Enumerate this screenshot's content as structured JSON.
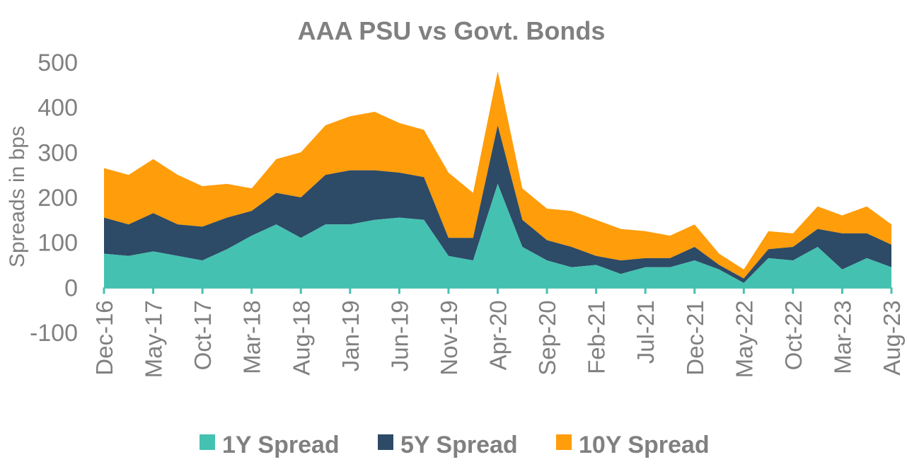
{
  "chart_data": {
    "type": "area",
    "title": "AAA PSU vs Govt. Bonds",
    "xlabel": "",
    "ylabel": "Spreads in bps",
    "ylim": [
      -100,
      500
    ],
    "yticks": [
      "-100",
      "0",
      "100",
      "200",
      "300",
      "400",
      "500"
    ],
    "grid": false,
    "stacked": true,
    "legend_position": "bottom",
    "x": [
      "Dec-16",
      "Mar-17",
      "May-17",
      "Aug-17",
      "Oct-17",
      "Jan-18",
      "Mar-18",
      "Jun-18",
      "Aug-18",
      "Nov-18",
      "Jan-19",
      "Apr-19",
      "Jun-19",
      "Sep-19",
      "Nov-19",
      "Feb-20",
      "Apr-20",
      "Jul-20",
      "Sep-20",
      "Dec-20",
      "Feb-21",
      "May-21",
      "Jul-21",
      "Oct-21",
      "Dec-21",
      "Mar-22",
      "May-22",
      "Aug-22",
      "Oct-22",
      "Jan-23",
      "Mar-23",
      "Jun-23",
      "Aug-23"
    ],
    "xtick_labels": [
      "Dec-16",
      "May-17",
      "Oct-17",
      "Mar-18",
      "Aug-18",
      "Jan-19",
      "Jun-19",
      "Nov-19",
      "Apr-20",
      "Sep-20",
      "Feb-21",
      "Jul-21",
      "Dec-21",
      "May-22",
      "Oct-22",
      "Mar-23",
      "Aug-23"
    ],
    "series": [
      {
        "name": "1Y Spread",
        "color": "#45C1B1",
        "values": [
          75,
          70,
          80,
          70,
          60,
          85,
          115,
          140,
          110,
          140,
          140,
          150,
          155,
          150,
          70,
          60,
          230,
          90,
          60,
          45,
          50,
          30,
          45,
          45,
          60,
          40,
          10,
          65,
          60,
          90,
          40,
          65,
          45
        ]
      },
      {
        "name": "5Y Spread",
        "color": "#2D4A66",
        "values": [
          80,
          70,
          85,
          70,
          75,
          70,
          55,
          70,
          90,
          110,
          120,
          110,
          100,
          95,
          40,
          50,
          130,
          60,
          45,
          45,
          20,
          30,
          20,
          20,
          30,
          10,
          10,
          20,
          30,
          40,
          80,
          55,
          50
        ]
      },
      {
        "name": "10Y Spread",
        "color": "#FF9D0A",
        "values": [
          110,
          110,
          120,
          110,
          90,
          75,
          50,
          75,
          100,
          110,
          120,
          130,
          110,
          105,
          145,
          100,
          120,
          70,
          70,
          80,
          80,
          70,
          60,
          50,
          50,
          25,
          20,
          40,
          30,
          50,
          40,
          60,
          45
        ]
      }
    ],
    "legend": [
      "1Y Spread",
      "5Y Spread",
      "10Y Spread"
    ]
  }
}
